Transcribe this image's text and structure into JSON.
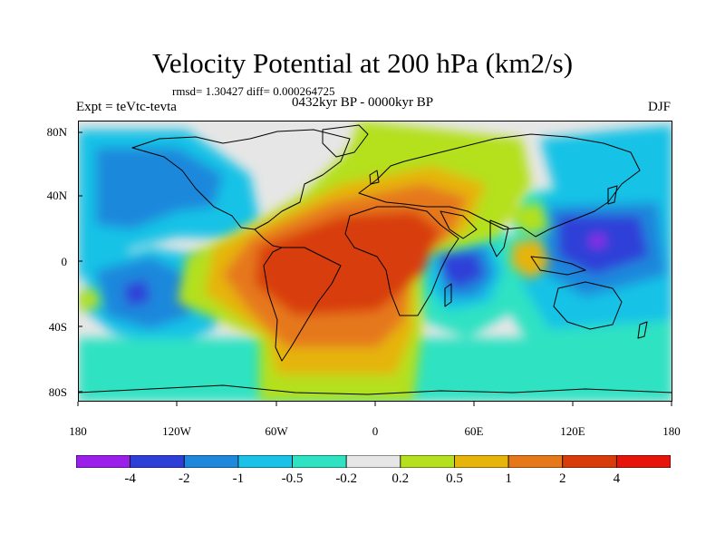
{
  "title": "Velocity Potential at 200 hPa (km2/s)",
  "stats": "rmsd= 1.30427 diff= 0.000264725",
  "experiment": "Expt = teVtc-tevta",
  "period": "0432kyr BP - 0000kyr BP",
  "season": "DJF",
  "map": {
    "y_ticks": [
      "80N",
      "40N",
      "0",
      "40S",
      "80S"
    ],
    "x_ticks": [
      "180",
      "120W",
      "60W",
      "0",
      "60E",
      "120E",
      "180"
    ]
  },
  "colorbar": {
    "labels": [
      "-4",
      "-2",
      "-1",
      "-0.5",
      "-0.2",
      "0.2",
      "0.5",
      "1",
      "2",
      "4"
    ],
    "colors": [
      "#9b1fea",
      "#2d3fd8",
      "#1e88dc",
      "#19c2e6",
      "#2ee2c2",
      "#e6e6e6",
      "#b4e01e",
      "#e6b40a",
      "#e6781a",
      "#d83c0a",
      "#e6140a"
    ]
  },
  "colors": {
    "neutral": "#e6e6e6",
    "pos_weak": "#b4e01e",
    "pos_mid": "#e6b40a",
    "pos_strong": "#e6781a",
    "pos_max": "#d83c0a",
    "neg_weak": "#2ee2c2",
    "neg_mid": "#19c2e6",
    "neg_strong": "#1e88dc",
    "neg_max": "#2d3fd8",
    "neg_extreme": "#9b1fea"
  }
}
